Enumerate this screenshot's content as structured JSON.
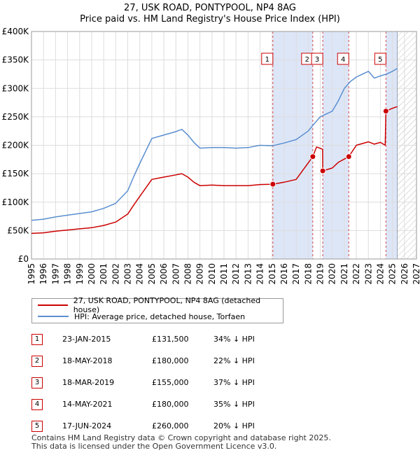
{
  "title_line1": "27, USK ROAD, PONTYPOOL, NP4 8AG",
  "title_line2": "Price paid vs. HM Land Registry's House Price Index (HPI)",
  "legend": {
    "property_label": "27, USK ROAD, PONTYPOOL, NP4 8AG (detached house)",
    "hpi_label": "HPI: Average price, detached house, Torfaen"
  },
  "sales": [
    {
      "num": "1",
      "date": "23-JAN-2015",
      "price": "£131,500",
      "pct": "34% ↓ HPI"
    },
    {
      "num": "2",
      "date": "18-MAY-2018",
      "price": "£180,000",
      "pct": "22% ↓ HPI"
    },
    {
      "num": "3",
      "date": "18-MAR-2019",
      "price": "£155,000",
      "pct": "37% ↓ HPI"
    },
    {
      "num": "4",
      "date": "14-MAY-2021",
      "price": "£180,000",
      "pct": "35% ↓ HPI"
    },
    {
      "num": "5",
      "date": "17-JUN-2024",
      "price": "£260,000",
      "pct": "20% ↓ HPI"
    }
  ],
  "footer_line1": "Contains HM Land Registry data © Crown copyright and database right 2025.",
  "footer_line2": "This data is licensed under the Open Government Licence v3.0.",
  "colors": {
    "property": "#cc0000",
    "hpi": "#5b8fd0",
    "shade": "#dde6f7",
    "grid": "#dddddd",
    "marker_border": "#cc0000"
  },
  "chart_data": {
    "type": "line",
    "title": "Price paid vs. HM Land Registry's House Price Index (HPI)",
    "xlabel": "",
    "ylabel": "",
    "xlim": [
      1995,
      2027
    ],
    "ylim": [
      0,
      400000
    ],
    "x_ticks": [
      1995,
      1996,
      1997,
      1998,
      1999,
      2000,
      2001,
      2002,
      2003,
      2004,
      2005,
      2006,
      2007,
      2008,
      2009,
      2010,
      2011,
      2012,
      2013,
      2014,
      2015,
      2016,
      2017,
      2018,
      2019,
      2020,
      2021,
      2022,
      2023,
      2024,
      2025,
      2026,
      2027
    ],
    "y_ticks": [
      {
        "value": 0,
        "label": "£0"
      },
      {
        "value": 50000,
        "label": "£50K"
      },
      {
        "value": 100000,
        "label": "£100K"
      },
      {
        "value": 150000,
        "label": "£150K"
      },
      {
        "value": 200000,
        "label": "£200K"
      },
      {
        "value": 250000,
        "label": "£250K"
      },
      {
        "value": 300000,
        "label": "£300K"
      },
      {
        "value": 350000,
        "label": "£350K"
      },
      {
        "value": 400000,
        "label": "£400K"
      }
    ],
    "shaded_ranges": [
      [
        2015.06,
        2018.38
      ],
      [
        2019.21,
        2021.37
      ],
      [
        2024.46,
        2025.4
      ]
    ],
    "forecast_start": 2025.4,
    "series": [
      {
        "name": "HPI: Average price, detached house, Torfaen",
        "x": [
          1995,
          1996,
          1997,
          1998,
          1999,
          2000,
          2001,
          2002,
          2003,
          2003.5,
          2004,
          2004.5,
          2005,
          2006,
          2007,
          2007.5,
          2008,
          2008.5,
          2009,
          2010,
          2011,
          2012,
          2013,
          2014,
          2015,
          2016,
          2017,
          2018,
          2018.5,
          2019,
          2019.5,
          2020,
          2020.5,
          2021,
          2021.5,
          2022,
          2022.5,
          2023,
          2023.5,
          2024,
          2024.5,
          2025,
          2025.4
        ],
        "values": [
          68000,
          70000,
          74000,
          77000,
          80000,
          83000,
          89000,
          98000,
          120000,
          145000,
          168000,
          190000,
          212000,
          218000,
          224000,
          228000,
          218000,
          205000,
          195000,
          196000,
          196000,
          195000,
          196000,
          200000,
          199000,
          204000,
          210000,
          225000,
          238000,
          250000,
          255000,
          260000,
          278000,
          300000,
          312000,
          320000,
          325000,
          330000,
          318000,
          322000,
          325000,
          330000,
          335000
        ]
      },
      {
        "name": "27, USK ROAD, PONTYPOOL, NP4 8AG (detached house)",
        "x": [
          1995,
          1996,
          1997,
          1998,
          1999,
          2000,
          2001,
          2002,
          2003,
          2003.5,
          2004,
          2004.5,
          2005,
          2006,
          2007,
          2007.5,
          2008,
          2008.5,
          2009,
          2010,
          2011,
          2012,
          2013,
          2014,
          2015.06,
          2016,
          2017,
          2018.38,
          2018.7,
          2019.2,
          2019.21,
          2020,
          2020.5,
          2021.37,
          2022,
          2023,
          2023.5,
          2024,
          2024.4,
          2024.46,
          2025,
          2025.4
        ],
        "values": [
          45000,
          46000,
          49000,
          51000,
          53000,
          55000,
          59000,
          65000,
          79000,
          95000,
          110000,
          125000,
          140000,
          144000,
          148000,
          150000,
          144000,
          135000,
          129000,
          130000,
          129000,
          129000,
          129000,
          131000,
          131500,
          135000,
          140000,
          180000,
          197000,
          193000,
          155000,
          160000,
          170000,
          180000,
          200000,
          206000,
          202000,
          205000,
          200000,
          260000,
          265000,
          268000
        ]
      }
    ],
    "sale_points": [
      {
        "label": "1",
        "x": 2015.06,
        "y": 131500
      },
      {
        "label": "2",
        "x": 2018.38,
        "y": 180000
      },
      {
        "label": "3",
        "x": 2019.21,
        "y": 155000
      },
      {
        "label": "4",
        "x": 2021.37,
        "y": 180000
      },
      {
        "label": "5",
        "x": 2024.46,
        "y": 260000
      }
    ]
  }
}
